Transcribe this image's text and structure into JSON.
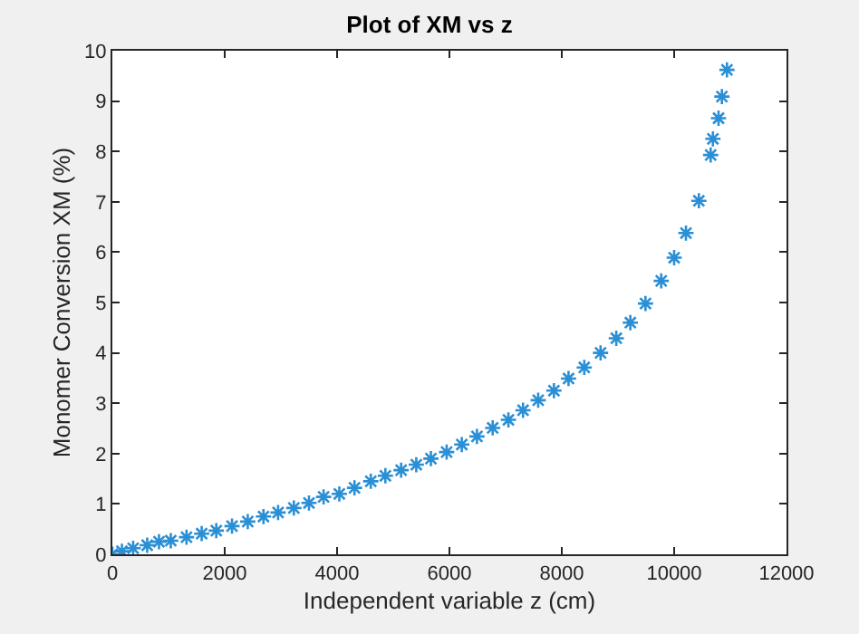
{
  "chart_data": {
    "type": "scatter",
    "title": "Plot of XM vs z",
    "xlabel": "Independent variable z (cm)",
    "ylabel": "Monomer Conversion XM (%)",
    "x": [
      0,
      80,
      170,
      370,
      620,
      830,
      1040,
      1320,
      1590,
      1850,
      2130,
      2410,
      2690,
      2950,
      3230,
      3500,
      3760,
      4040,
      4310,
      4600,
      4860,
      5140,
      5410,
      5670,
      5950,
      6220,
      6490,
      6770,
      7050,
      7310,
      7580,
      7860,
      8120,
      8400,
      8690,
      8970,
      9220,
      9490,
      9770,
      10000,
      10210,
      10440,
      10650,
      10690,
      10790,
      10850,
      10940
    ],
    "series": [
      {
        "color": "#2a8fd4",
        "values": [
          0,
          null,
          0.06,
          0.12,
          0.18,
          0.25,
          0.27,
          0.34,
          0.41,
          0.47,
          0.56,
          0.65,
          0.75,
          0.83,
          0.92,
          1.02,
          1.14,
          1.2,
          1.32,
          1.45,
          1.56,
          1.67,
          1.78,
          1.9,
          2.03,
          2.18,
          2.34,
          2.51,
          2.67,
          2.86,
          3.06,
          3.25,
          3.49,
          3.71,
          4.0,
          4.29,
          4.6,
          4.98,
          5.43,
          5.89,
          6.38,
          7.02,
          7.93,
          8.25,
          8.66,
          9.09,
          9.62
        ]
      }
    ],
    "xlim": [
      0,
      12000
    ],
    "xticks": [
      0,
      2000,
      4000,
      6000,
      8000,
      10000,
      12000
    ],
    "ylim": [
      0,
      10
    ],
    "yticks": [
      0,
      1,
      2,
      3,
      4,
      5,
      6,
      7,
      8,
      9,
      10
    ],
    "grid": false,
    "legend": false,
    "marker": "cross"
  }
}
